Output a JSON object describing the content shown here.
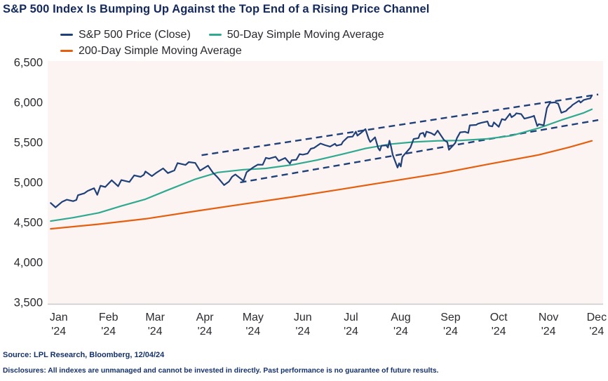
{
  "page": {
    "title": "S&P 500 Index Is Bumping Up Against the Top End of a Rising Price Channel"
  },
  "legend": {
    "items": [
      {
        "label": "S&P 500 Price (Close)",
        "color": "#1f4078",
        "style": "solid"
      },
      {
        "label": "50-Day Simple Moving Average",
        "color": "#2fa98f",
        "style": "solid"
      },
      {
        "label": "200-Day Simple Moving Average",
        "color": "#e55f0f",
        "style": "solid"
      }
    ]
  },
  "chart_data": {
    "type": "line",
    "title": "S&P 500 Index Is Bumping Up Against the Top End of a Rising Price Channel",
    "x_unit": "day_of_year_2024",
    "xlim": [
      1,
      346
    ],
    "ylim": [
      3500,
      6500
    ],
    "grid": false,
    "legend_position": "top",
    "plot_bg": "#fcf4f3",
    "axis_color": "#c9c9c9",
    "tick_color": "#2b2b30",
    "y_ticks": [
      {
        "value": 6500,
        "label": "6,500"
      },
      {
        "value": 6000,
        "label": "6,000"
      },
      {
        "value": 5500,
        "label": "5,500"
      },
      {
        "value": 5000,
        "label": "5,000"
      },
      {
        "value": 4500,
        "label": "4,500"
      },
      {
        "value": 4000,
        "label": "4,000"
      },
      {
        "value": 3500,
        "label": "3,500"
      }
    ],
    "x_ticks": [
      {
        "day": 1,
        "line1": "Jan",
        "line2": "'24"
      },
      {
        "day": 32,
        "line1": "Feb",
        "line2": "'24"
      },
      {
        "day": 61,
        "line1": "Mar",
        "line2": "'24"
      },
      {
        "day": 92,
        "line1": "Apr",
        "line2": "'24"
      },
      {
        "day": 122,
        "line1": "May",
        "line2": "'24"
      },
      {
        "day": 153,
        "line1": "Jun",
        "line2": "'24"
      },
      {
        "day": 183,
        "line1": "Jul",
        "line2": "'24"
      },
      {
        "day": 214,
        "line1": "Aug",
        "line2": "'24"
      },
      {
        "day": 245,
        "line1": "Sep",
        "line2": "'24"
      },
      {
        "day": 275,
        "line1": "Oct",
        "line2": "'24"
      },
      {
        "day": 306,
        "line1": "Nov",
        "line2": "'24"
      },
      {
        "day": 336,
        "line1": "Dec",
        "line2": "'24"
      }
    ],
    "series": [
      {
        "name": "S&P 500 Price (Close)",
        "color": "#1f4078",
        "width": 2.2,
        "points": [
          [
            2,
            4743
          ],
          [
            5,
            4689
          ],
          [
            9,
            4756
          ],
          [
            12,
            4784
          ],
          [
            16,
            4766
          ],
          [
            18,
            4781
          ],
          [
            19,
            4840
          ],
          [
            23,
            4865
          ],
          [
            25,
            4894
          ],
          [
            29,
            4928
          ],
          [
            31,
            4846
          ],
          [
            33,
            4959
          ],
          [
            36,
            4943
          ],
          [
            40,
            5027
          ],
          [
            44,
            4953
          ],
          [
            46,
            5030
          ],
          [
            51,
            5006
          ],
          [
            54,
            5089
          ],
          [
            58,
            5070
          ],
          [
            60,
            5096
          ],
          [
            61,
            5137
          ],
          [
            65,
            5079
          ],
          [
            68,
            5124
          ],
          [
            72,
            5175
          ],
          [
            75,
            5117
          ],
          [
            79,
            5150
          ],
          [
            81,
            5242
          ],
          [
            86,
            5218
          ],
          [
            88,
            5254
          ],
          [
            92,
            5244
          ],
          [
            95,
            5147
          ],
          [
            100,
            5210
          ],
          [
            103,
            5123
          ],
          [
            106,
            5062
          ],
          [
            110,
            4967
          ],
          [
            113,
            5011
          ],
          [
            115,
            5071
          ],
          [
            117,
            5100
          ],
          [
            121,
            5036
          ],
          [
            122,
            5018
          ],
          [
            124,
            5128
          ],
          [
            128,
            5187
          ],
          [
            131,
            5223
          ],
          [
            134,
            5221
          ],
          [
            136,
            5308
          ],
          [
            138,
            5297
          ],
          [
            142,
            5321
          ],
          [
            144,
            5268
          ],
          [
            148,
            5306
          ],
          [
            151,
            5235
          ],
          [
            152,
            5277
          ],
          [
            155,
            5283
          ],
          [
            157,
            5354
          ],
          [
            159,
            5347
          ],
          [
            162,
            5361
          ],
          [
            164,
            5421
          ],
          [
            166,
            5432
          ],
          [
            170,
            5487
          ],
          [
            173,
            5465
          ],
          [
            176,
            5448
          ],
          [
            179,
            5483
          ],
          [
            180,
            5460
          ],
          [
            183,
            5475
          ],
          [
            184,
            5509
          ],
          [
            187,
            5567
          ],
          [
            190,
            5573
          ],
          [
            192,
            5634
          ],
          [
            193,
            5585
          ],
          [
            195,
            5615
          ],
          [
            198,
            5667
          ],
          [
            200,
            5545
          ],
          [
            201,
            5505
          ],
          [
            204,
            5564
          ],
          [
            206,
            5427
          ],
          [
            207,
            5399
          ],
          [
            208,
            5459
          ],
          [
            211,
            5464
          ],
          [
            212,
            5436
          ],
          [
            213,
            5522
          ],
          [
            214,
            5446
          ],
          [
            215,
            5346
          ],
          [
            218,
            5186
          ],
          [
            219,
            5240
          ],
          [
            220,
            5199
          ],
          [
            221,
            5319
          ],
          [
            222,
            5344
          ],
          [
            226,
            5434
          ],
          [
            228,
            5543
          ],
          [
            231,
            5554
          ],
          [
            232,
            5608
          ],
          [
            234,
            5620
          ],
          [
            235,
            5570
          ],
          [
            236,
            5635
          ],
          [
            239,
            5616
          ],
          [
            241,
            5592
          ],
          [
            243,
            5648
          ],
          [
            247,
            5529
          ],
          [
            249,
            5503
          ],
          [
            250,
            5408
          ],
          [
            253,
            5471
          ],
          [
            254,
            5496
          ],
          [
            255,
            5554
          ],
          [
            257,
            5626
          ],
          [
            260,
            5633
          ],
          [
            262,
            5618
          ],
          [
            263,
            5714
          ],
          [
            267,
            5719
          ],
          [
            268,
            5733
          ],
          [
            270,
            5745
          ],
          [
            274,
            5762
          ],
          [
            275,
            5709
          ],
          [
            277,
            5700
          ],
          [
            278,
            5751
          ],
          [
            281,
            5696
          ],
          [
            283,
            5792
          ],
          [
            285,
            5780
          ],
          [
            288,
            5860
          ],
          [
            289,
            5815
          ],
          [
            291,
            5841
          ],
          [
            292,
            5865
          ],
          [
            295,
            5854
          ],
          [
            297,
            5797
          ],
          [
            299,
            5808
          ],
          [
            302,
            5824
          ],
          [
            303,
            5833
          ],
          [
            305,
            5705
          ],
          [
            306,
            5729
          ],
          [
            309,
            5713
          ],
          [
            311,
            5929
          ],
          [
            313,
            5996
          ],
          [
            316,
            6001
          ],
          [
            318,
            5985
          ],
          [
            320,
            5871
          ],
          [
            323,
            5894
          ],
          [
            324,
            5917
          ],
          [
            326,
            5948
          ],
          [
            327,
            5969
          ],
          [
            331,
            6022
          ],
          [
            332,
            5998
          ],
          [
            334,
            6032
          ],
          [
            337,
            6047
          ],
          [
            338,
            6050
          ],
          [
            339,
            6086
          ]
        ]
      },
      {
        "name": "50-Day Simple Moving Average",
        "color": "#2fa98f",
        "width": 2.2,
        "points": [
          [
            2,
            4517
          ],
          [
            16,
            4560
          ],
          [
            32,
            4620
          ],
          [
            46,
            4705
          ],
          [
            61,
            4790
          ],
          [
            75,
            4905
          ],
          [
            92,
            5040
          ],
          [
            106,
            5125
          ],
          [
            122,
            5160
          ],
          [
            136,
            5175
          ],
          [
            153,
            5222
          ],
          [
            168,
            5280
          ],
          [
            183,
            5350
          ],
          [
            198,
            5425
          ],
          [
            214,
            5480
          ],
          [
            228,
            5505
          ],
          [
            243,
            5520
          ],
          [
            257,
            5525
          ],
          [
            274,
            5545
          ],
          [
            289,
            5585
          ],
          [
            306,
            5680
          ],
          [
            320,
            5780
          ],
          [
            334,
            5870
          ],
          [
            339,
            5915
          ]
        ]
      },
      {
        "name": "200-Day Simple Moving Average",
        "color": "#e55f0f",
        "width": 2.2,
        "points": [
          [
            2,
            4420
          ],
          [
            32,
            4478
          ],
          [
            61,
            4545
          ],
          [
            92,
            4640
          ],
          [
            122,
            4730
          ],
          [
            153,
            4820
          ],
          [
            183,
            4915
          ],
          [
            214,
            5015
          ],
          [
            245,
            5115
          ],
          [
            275,
            5230
          ],
          [
            306,
            5345
          ],
          [
            325,
            5440
          ],
          [
            339,
            5520
          ]
        ]
      }
    ],
    "annotations": {
      "rising_price_channel": {
        "color": "#1f4078",
        "dash": "9 6",
        "width": 2.4,
        "upper": [
          [
            96,
            5340
          ],
          [
            343,
            6100
          ]
        ],
        "lower": [
          [
            120,
            5000
          ],
          [
            343,
            5780
          ]
        ]
      }
    }
  },
  "footer": {
    "source": "Source: LPL Research, Bloomberg, 12/04/24",
    "disclosures": "Disclosures: All indexes are unmanaged and cannot be invested in directly. Past performance is no guarantee of future results."
  }
}
